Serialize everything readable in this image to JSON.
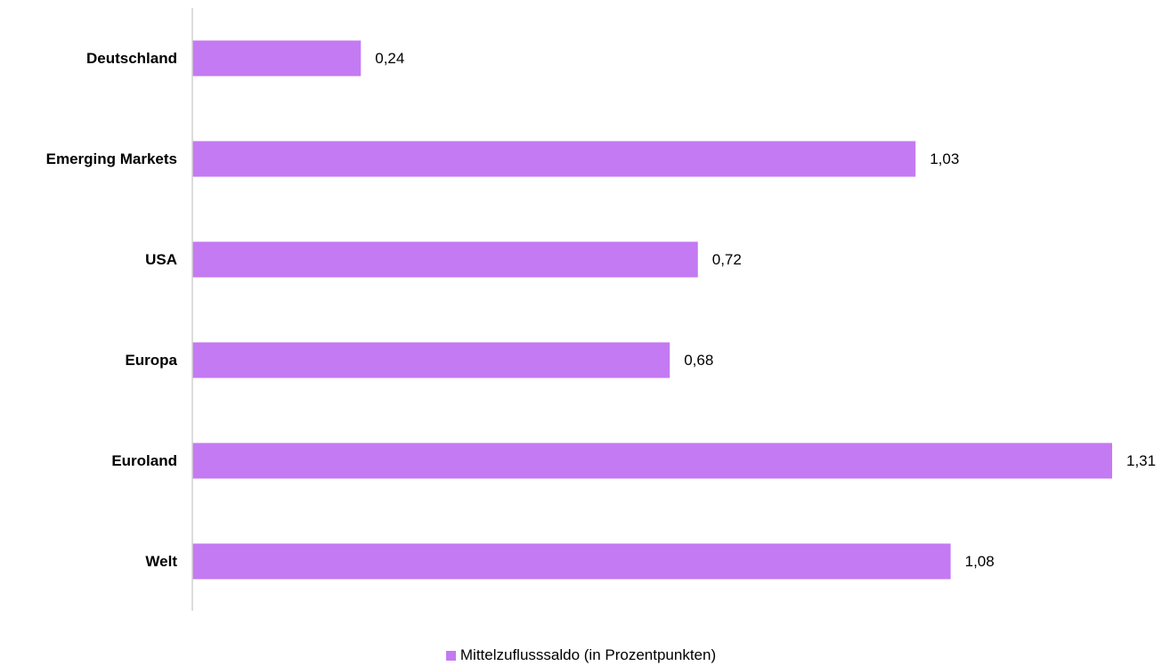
{
  "chart_data": {
    "type": "bar",
    "orientation": "horizontal",
    "categories": [
      "Deutschland",
      "Emerging Markets",
      "USA",
      "Europa",
      "Euroland",
      "Welt"
    ],
    "series": [
      {
        "name": "Mittelzuflusssaldo (in Prozentpunkten)",
        "values": [
          0.24,
          1.03,
          0.72,
          0.68,
          1.31,
          1.08
        ],
        "labels": [
          "0,24",
          "1,03",
          "0,72",
          "0,68",
          "1,31",
          "1,08"
        ],
        "color": "#c47af2"
      }
    ],
    "xlim": [
      0,
      1.31
    ],
    "grid": false,
    "legend_position": "bottom",
    "axis_color": "#d0d0d0"
  }
}
